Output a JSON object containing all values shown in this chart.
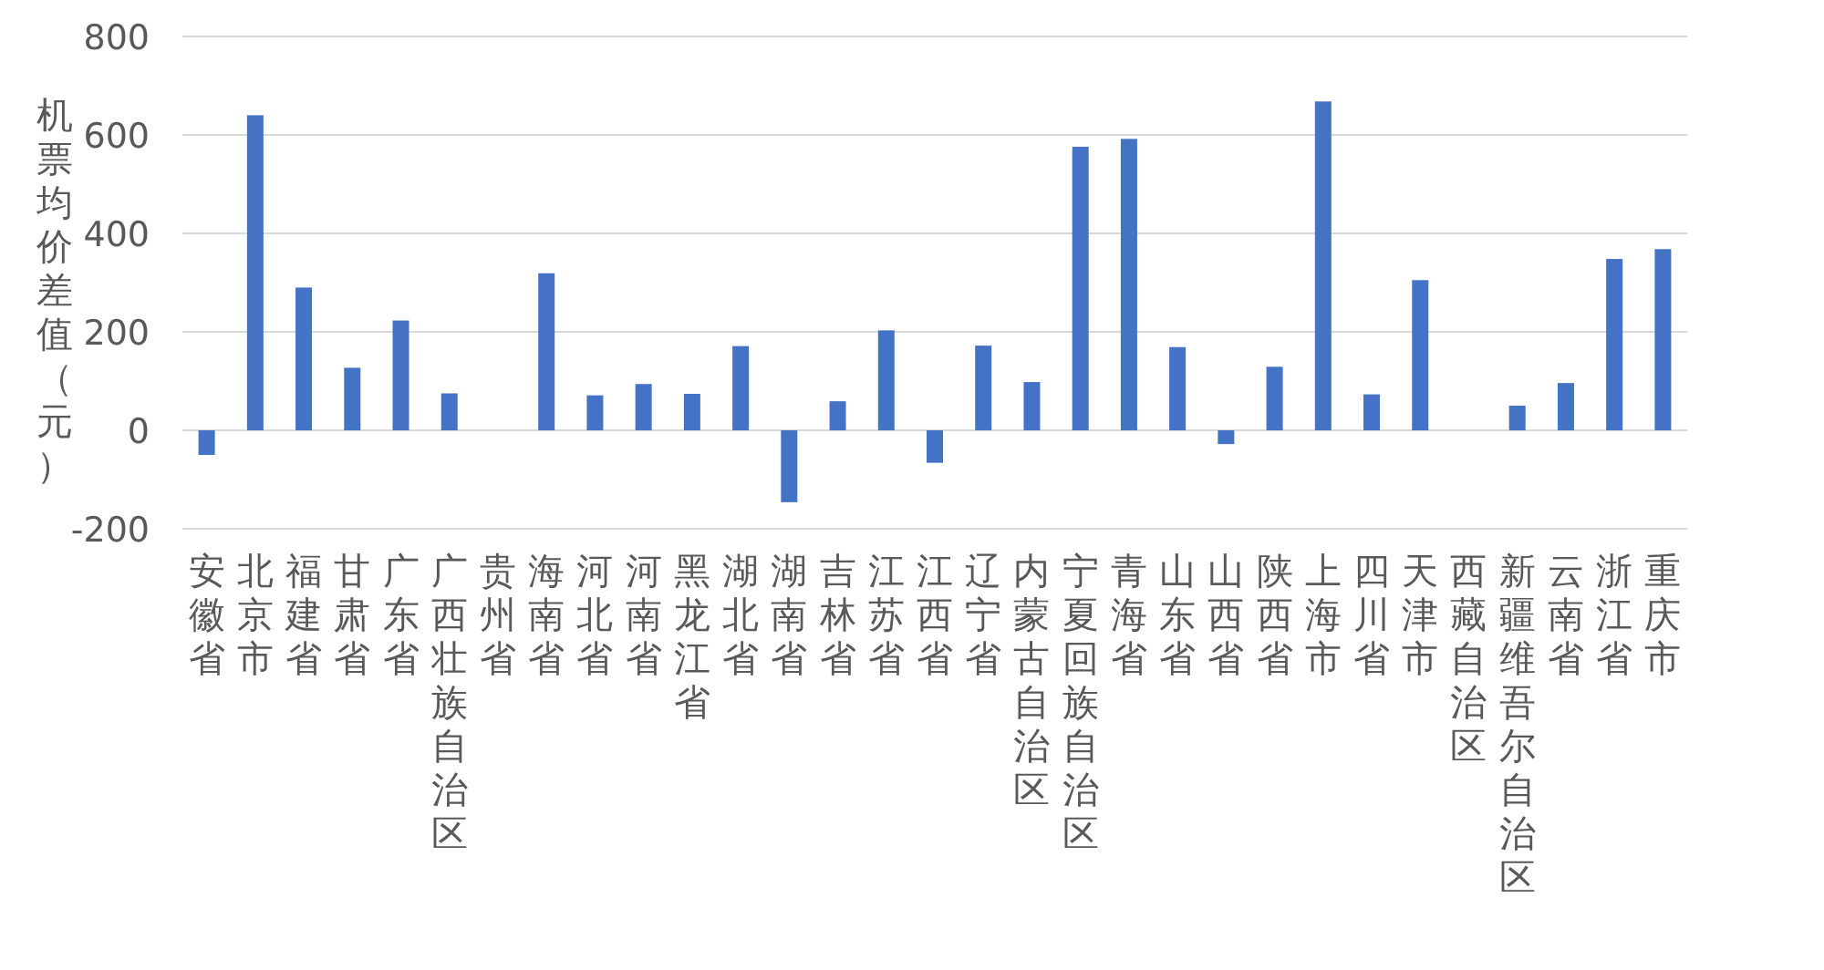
{
  "chart_data": {
    "type": "bar",
    "ylabel": "机票均价差值（元）",
    "categories": [
      "安徽省",
      "北京市",
      "福建省",
      "甘肃省",
      "广东省",
      "广西壮族自治区",
      "贵州省",
      "海南省",
      "河北省",
      "河南省",
      "黑龙江省",
      "湖北省",
      "湖南省",
      "吉林省",
      "江苏省",
      "江西省",
      "辽宁省",
      "内蒙古自治区",
      "宁夏回族自治区",
      "青海省",
      "山东省",
      "山西省",
      "陕西省",
      "上海市",
      "四川省",
      "天津市",
      "西藏自治区",
      "新疆维吾尔自治区",
      "云南省",
      "浙江省",
      "重庆市"
    ],
    "series": [
      {
        "color": "#4472c4",
        "values": [
          -50,
          640,
          290,
          127,
          223,
          75,
          0,
          319,
          71,
          94,
          74,
          171,
          -146,
          59,
          203,
          -66,
          172,
          98,
          576,
          592,
          169,
          -28,
          129,
          668,
          73,
          305,
          0,
          50,
          96,
          348,
          368
        ]
      }
    ],
    "ylim": [
      -200,
      800
    ],
    "yticks": [
      -200,
      0,
      200,
      400,
      600,
      800
    ],
    "grid": "y"
  }
}
